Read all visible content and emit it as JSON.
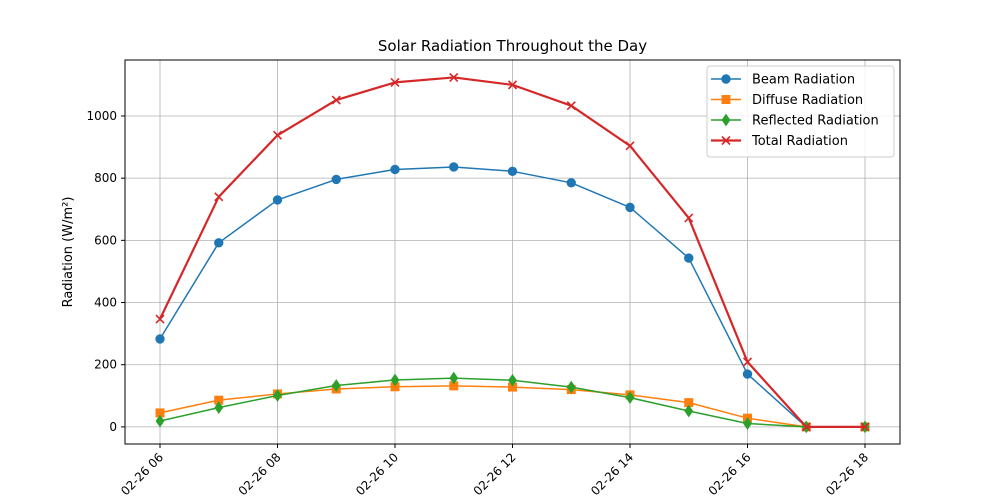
{
  "chart_data": {
    "type": "line",
    "title": "Solar Radiation Throughout the Day",
    "xlabel": "",
    "ylabel": "Radiation (W/m²)",
    "x": [
      "02-26 06",
      "02-26 07",
      "02-26 08",
      "02-26 09",
      "02-26 10",
      "02-26 11",
      "02-26 12",
      "02-26 13",
      "02-26 14",
      "02-26 15",
      "02-26 16",
      "02-26 17",
      "02-26 18"
    ],
    "x_ticks": [
      "02-26 06",
      "02-26 08",
      "02-26 10",
      "02-26 12",
      "02-26 14",
      "02-26 16",
      "02-26 18"
    ],
    "y_ticks": [
      0,
      200,
      400,
      600,
      800,
      1000
    ],
    "ylim": [
      -55,
      1180
    ],
    "grid": true,
    "legend_position": "top-right",
    "series": [
      {
        "name": "Beam Radiation",
        "color": "#1f77b4",
        "marker": "circle",
        "values": [
          283,
          592,
          730,
          796,
          828,
          836,
          822,
          785,
          706,
          543,
          170,
          0,
          0
        ]
      },
      {
        "name": "Diffuse Radiation",
        "color": "#ff7f0e",
        "marker": "square",
        "values": [
          45,
          86,
          106,
          122,
          129,
          132,
          128,
          120,
          103,
          78,
          28,
          0,
          0
        ]
      },
      {
        "name": "Reflected Radiation",
        "color": "#2ca02c",
        "marker": "diamond",
        "values": [
          19,
          62,
          101,
          133,
          151,
          157,
          150,
          128,
          94,
          51,
          11,
          0,
          0
        ]
      },
      {
        "name": "Total Radiation",
        "color": "#d62728",
        "marker": "x",
        "values": [
          347,
          740,
          938,
          1051,
          1108,
          1124,
          1100,
          1033,
          904,
          672,
          209,
          0,
          0
        ]
      }
    ]
  }
}
